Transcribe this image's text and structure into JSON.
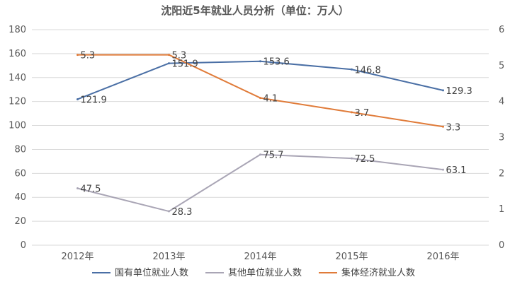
{
  "chart_data": {
    "type": "line",
    "title": "沈阳近5年就业人员分析（单位：万人）",
    "categories": [
      "2012年",
      "2013年",
      "2014年",
      "2015年",
      "2016年"
    ],
    "y_left": {
      "range": [
        0,
        180
      ],
      "ticks": [
        "0",
        "20",
        "40",
        "60",
        "80",
        "100",
        "120",
        "140",
        "160",
        "180"
      ]
    },
    "y_right": {
      "range": [
        0,
        6
      ],
      "ticks": [
        "0",
        "1",
        "2",
        "3",
        "4",
        "5",
        "6"
      ]
    },
    "grid": true,
    "legend_position": "bottom",
    "series": [
      {
        "name": "国有单位就业人数",
        "axis": "left",
        "color": "#4a6fa5",
        "values": [
          121.9,
          151.9,
          153.6,
          146.8,
          129.3
        ],
        "labels": [
          "121.9",
          "151.9",
          "153.6",
          "146.8",
          "129.3"
        ]
      },
      {
        "name": "其他单位就业人数",
        "axis": "left",
        "color": "#a9a5b5",
        "values": [
          47.5,
          28.3,
          75.7,
          72.5,
          63.1
        ],
        "labels": [
          "47.5",
          "28.3",
          "75.7",
          "72.5",
          "63.1"
        ]
      },
      {
        "name": "集体经济就业人数",
        "axis": "right",
        "color": "#e07b39",
        "values": [
          5.3,
          5.3,
          4.1,
          3.7,
          3.3
        ],
        "labels": [
          "5.3",
          "5.3",
          "4.1",
          "3.7",
          "3.3"
        ]
      }
    ]
  }
}
